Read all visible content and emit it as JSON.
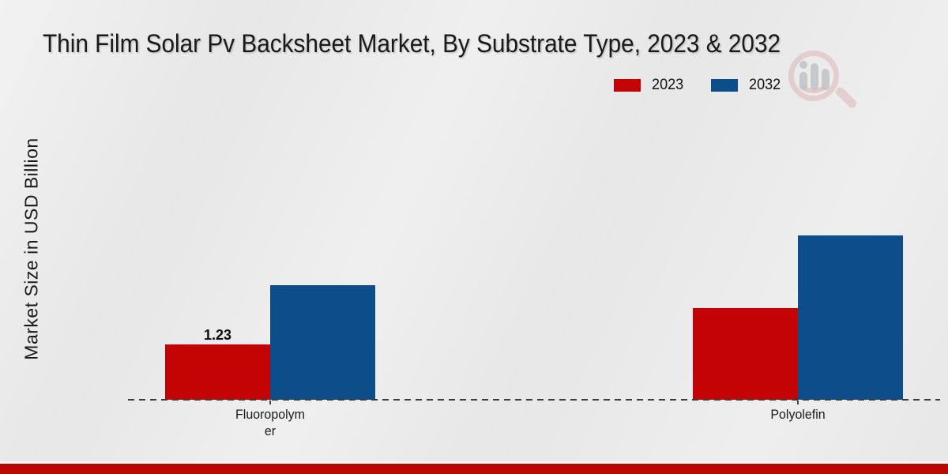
{
  "chart_data": {
    "type": "bar",
    "title": "Thin Film Solar Pv Backsheet Market, By Substrate Type, 2023 & 2032",
    "ylabel": "Market Size in USD Billion",
    "xlabel": "",
    "categories": [
      "Fluoropolymer",
      "Polyolefin"
    ],
    "category_label_lines": [
      [
        "Fluoropolym",
        "er"
      ],
      [
        "Polyolefin"
      ]
    ],
    "series": [
      {
        "name": "2023",
        "color": "#c40404",
        "values": [
          1.23,
          2.04
        ]
      },
      {
        "name": "2032",
        "color": "#0d4d89",
        "values": [
          2.54,
          3.65
        ]
      }
    ],
    "data_labels": [
      {
        "series": "2023",
        "category": "Fluoropolymer",
        "text": "1.23"
      }
    ],
    "ylim": [
      0,
      4.5
    ],
    "grid": false,
    "legend_position": "top-right",
    "axis_line_style": "dashed"
  },
  "watermark": {
    "icon": "magnifier-bar-chart-logo"
  },
  "footer": {
    "accent_color": "#bb0702"
  }
}
